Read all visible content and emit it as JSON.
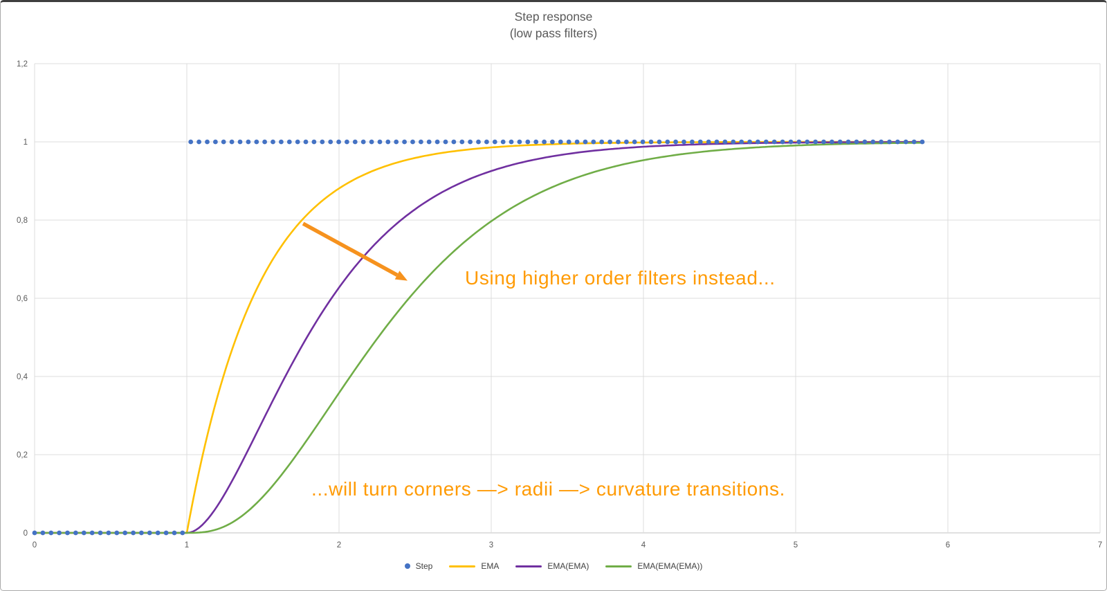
{
  "window": {
    "background": "#ffffff",
    "frame_border_color": "#a9a9a9",
    "frame_top_color": "#3e3e3e"
  },
  "chart_data": {
    "type": "line",
    "title": "Step response",
    "subtitle": "(low pass filters)",
    "title_color": "#595959",
    "axis": {
      "x_range": [
        0,
        7
      ],
      "y_range": [
        0,
        1.2
      ],
      "x_tick_values": [
        0,
        1,
        2,
        3,
        4,
        5,
        6,
        7
      ],
      "x_tick_labels": [
        "0",
        "1",
        "2",
        "3",
        "4",
        "5",
        "6",
        "7"
      ],
      "y_tick_values": [
        0,
        0.2,
        0.4,
        0.6,
        0.8,
        1,
        1.2
      ],
      "y_tick_labels": [
        "0",
        "0,2",
        "0,4",
        "0,6",
        "0,8",
        "1",
        "1,2"
      ],
      "grid": true,
      "gridline_color": "#dcdcdc",
      "axis_line_color": "#c0c0c0",
      "tick_label_color": "#595959"
    },
    "model": {
      "family": "ema_cascade_step_response",
      "description": "y = 1 - exp(-u) * sum_{k<order} u^k/k!, u=(x-step_time)/tau",
      "tau": 0.47,
      "step_time": 1,
      "x_start": 0,
      "x_end": 5.84,
      "dot_spacing": 0.054,
      "curve_dx": 0.02
    },
    "series": [
      {
        "name": "Step",
        "style": "dots",
        "order": 0,
        "color": "#4472c4",
        "points": [
          [
            0,
            0
          ],
          [
            1,
            0
          ],
          [
            1.05,
            1
          ],
          [
            5.84,
            1
          ]
        ]
      },
      {
        "name": "EMA",
        "style": "line",
        "order": 1,
        "color": "#ffc000",
        "points": [
          [
            1,
            0
          ],
          [
            1.25,
            0.41
          ],
          [
            1.5,
            0.65
          ],
          [
            1.75,
            0.8
          ],
          [
            2,
            0.88
          ],
          [
            2.25,
            0.93
          ],
          [
            2.5,
            0.96
          ],
          [
            3,
            0.99
          ],
          [
            3.5,
            0.99
          ],
          [
            4,
            1.0
          ],
          [
            5,
            1.0
          ],
          [
            5.84,
            1.0
          ]
        ]
      },
      {
        "name": "EMA(EMA)",
        "style": "line",
        "order": 2,
        "color": "#7030a0",
        "points": [
          [
            1,
            0
          ],
          [
            1.25,
            0.1
          ],
          [
            1.5,
            0.29
          ],
          [
            1.75,
            0.47
          ],
          [
            2,
            0.63
          ],
          [
            2.25,
            0.74
          ],
          [
            2.5,
            0.83
          ],
          [
            2.75,
            0.89
          ],
          [
            3,
            0.93
          ],
          [
            3.5,
            0.97
          ],
          [
            4,
            0.99
          ],
          [
            5,
            1.0
          ],
          [
            5.84,
            1.0
          ]
        ]
      },
      {
        "name": "EMA(EMA(EMA))",
        "style": "line",
        "order": 3,
        "color": "#70ad47",
        "points": [
          [
            1,
            0
          ],
          [
            1.25,
            0.02
          ],
          [
            1.5,
            0.09
          ],
          [
            1.75,
            0.22
          ],
          [
            2,
            0.36
          ],
          [
            2.25,
            0.5
          ],
          [
            2.5,
            0.62
          ],
          [
            2.75,
            0.72
          ],
          [
            3,
            0.8
          ],
          [
            3.5,
            0.9
          ],
          [
            4,
            0.95
          ],
          [
            4.5,
            0.98
          ],
          [
            5,
            0.99
          ],
          [
            5.84,
            1.0
          ]
        ]
      }
    ],
    "legend": {
      "position": "bottom-center",
      "label_color": "#3f3f3f"
    },
    "annotations": {
      "text1": "Using higher order filters instead...",
      "text2": "...will turn corners —> radii —> curvature transitions.",
      "color": "#ff9b05",
      "arrow": {
        "from": [
          1.764,
          0.791
        ],
        "to": [
          2.45,
          0.645
        ],
        "color": "#f6921e"
      }
    }
  }
}
